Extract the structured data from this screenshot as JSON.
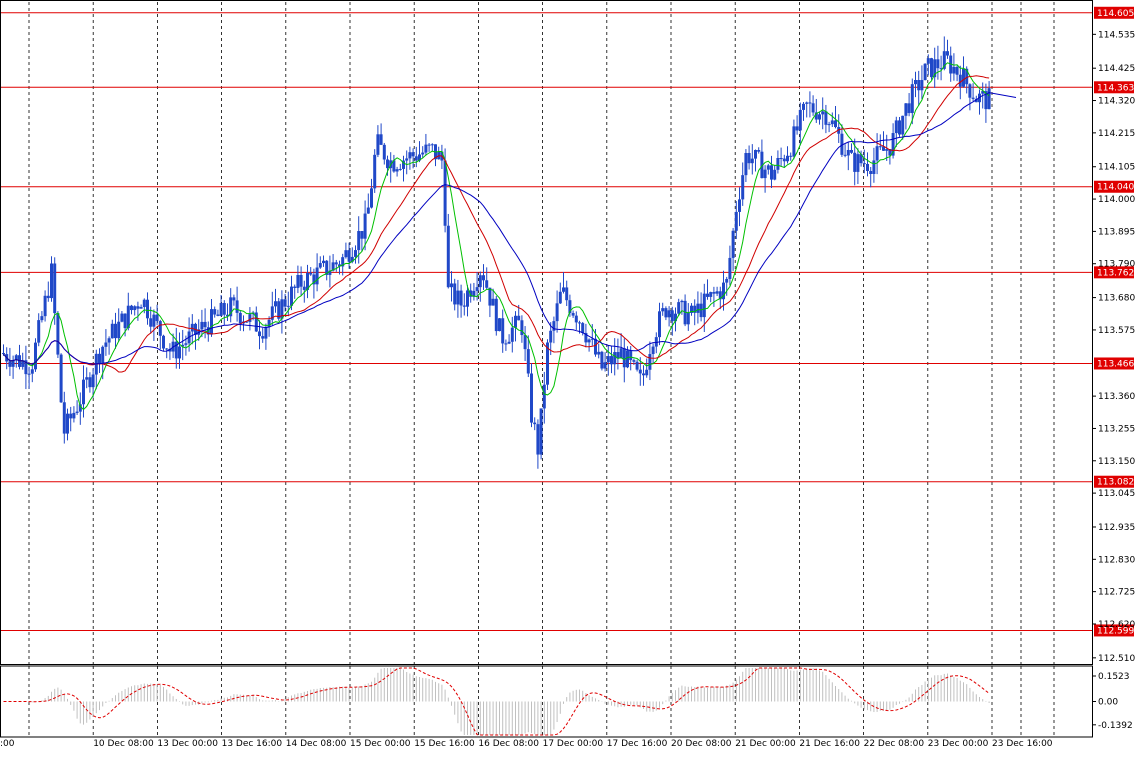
{
  "chart_data": [
    {
      "type": "candlestick",
      "title": "",
      "price_axis_ticks": [
        "114.535",
        "114.425",
        "114.320",
        "114.215",
        "114.105",
        "114.000",
        "113.895",
        "113.790",
        "113.680",
        "113.575",
        "113.360",
        "113.255",
        "113.150",
        "113.045",
        "112.935",
        "112.830",
        "112.725",
        "112.620",
        "112.510"
      ],
      "ylim": [
        112.49,
        114.64
      ],
      "time_labels": [
        ":00",
        "10 Dec 08:00",
        "13 Dec 00:00",
        "13 Dec 16:00",
        "14 Dec 08:00",
        "15 Dec 00:00",
        "15 Dec 16:00",
        "16 Dec 08:00",
        "17 Dec 00:00",
        "17 Dec 16:00",
        "20 Dec 08:00",
        "21 Dec 00:00",
        "21 Dec 16:00",
        "22 Dec 08:00",
        "23 Dec 00:00",
        "23 Dec 16:00"
      ],
      "horizontal_levels": [
        {
          "value": "114.605",
          "color": "#e00000"
        },
        {
          "value": "114.363",
          "color": "#e00000"
        },
        {
          "value": "114.040",
          "color": "#e00000"
        },
        {
          "value": "113.762",
          "color": "#e00000"
        },
        {
          "value": "113.466",
          "color": "#e00000"
        },
        {
          "value": "113.082",
          "color": "#e00000"
        },
        {
          "value": "112.599",
          "color": "#e00000"
        }
      ],
      "price_key_points": [
        [
          0,
          113.5
        ],
        [
          30,
          113.46
        ],
        [
          50,
          113.76
        ],
        [
          62,
          113.24
        ],
        [
          80,
          113.36
        ],
        [
          100,
          113.52
        ],
        [
          140,
          113.68
        ],
        [
          170,
          113.5
        ],
        [
          200,
          113.58
        ],
        [
          230,
          113.65
        ],
        [
          260,
          113.58
        ],
        [
          300,
          113.73
        ],
        [
          340,
          113.8
        ],
        [
          365,
          113.92
        ],
        [
          375,
          114.18
        ],
        [
          390,
          114.12
        ],
        [
          410,
          114.14
        ],
        [
          430,
          114.16
        ],
        [
          442,
          114.12
        ],
        [
          446,
          113.7
        ],
        [
          460,
          113.66
        ],
        [
          480,
          113.78
        ],
        [
          500,
          113.55
        ],
        [
          520,
          113.6
        ],
        [
          530,
          113.3
        ],
        [
          537,
          113.18
        ],
        [
          545,
          113.5
        ],
        [
          560,
          113.7
        ],
        [
          580,
          113.6
        ],
        [
          600,
          113.45
        ],
        [
          620,
          113.5
        ],
        [
          640,
          113.4
        ],
        [
          650,
          113.55
        ],
        [
          665,
          113.65
        ],
        [
          690,
          113.62
        ],
        [
          710,
          113.68
        ],
        [
          725,
          113.72
        ],
        [
          735,
          113.98
        ],
        [
          745,
          114.15
        ],
        [
          770,
          114.08
        ],
        [
          790,
          114.18
        ],
        [
          805,
          114.3
        ],
        [
          825,
          114.28
        ],
        [
          850,
          114.12
        ],
        [
          870,
          114.12
        ],
        [
          890,
          114.18
        ],
        [
          905,
          114.3
        ],
        [
          925,
          114.42
        ],
        [
          945,
          114.45
        ],
        [
          960,
          114.4
        ],
        [
          975,
          114.33
        ],
        [
          990,
          114.32
        ]
      ],
      "series": [
        {
          "name": "",
          "color": "#2048c8",
          "kind": "candles"
        },
        {
          "name": "",
          "color": "#00c000",
          "period": 8,
          "kind": "ma"
        },
        {
          "name": "",
          "color": "#d00000",
          "period": 21,
          "kind": "ma"
        },
        {
          "name": "",
          "color": "#0000c0",
          "period": 34,
          "kind": "ma"
        }
      ],
      "last_ma_blue": 114.33
    },
    {
      "type": "histogram",
      "title": "",
      "axis_ticks": [
        "0.1523",
        "0.00",
        "-0.1392"
      ],
      "ylim": [
        -0.2,
        0.2
      ],
      "bar_color": "#c0c0c0",
      "signal_color": "#e00000"
    }
  ]
}
